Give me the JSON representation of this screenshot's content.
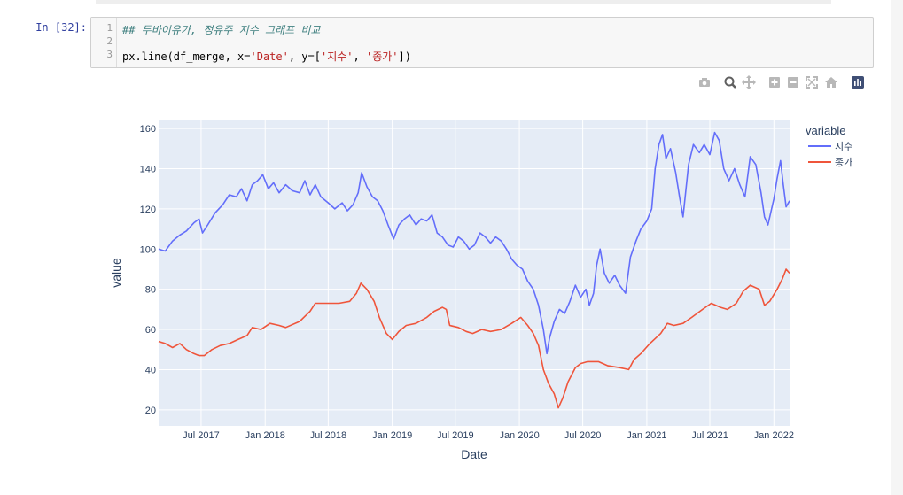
{
  "cell": {
    "prompt": "In [32]:",
    "line_numbers": [
      "1",
      "2",
      "3"
    ],
    "line1_comment": "## 두바이유가, 정유주 지수 그래프 비교",
    "line3_a": "px.line(df_merge, x=",
    "line3_b": "'Date'",
    "line3_c": ", y=[",
    "line3_d": "'지수'",
    "line3_e": ", ",
    "line3_f": "'종가'",
    "line3_g": "])"
  },
  "modebar": {
    "icons": [
      "camera-icon",
      "zoom-icon",
      "pan-icon",
      "zoom-in-icon",
      "zoom-out-icon",
      "autoscale-icon",
      "home-icon",
      "plotly-logo-icon"
    ]
  },
  "chart_data": {
    "type": "line",
    "xlabel": "Date",
    "ylabel": "value",
    "legend_title": "variable",
    "legend_position": "top-right",
    "grid": true,
    "plot_bgcolor": "#E5ECF6",
    "ylim": [
      12,
      164
    ],
    "xlim": [
      "2017-03-01",
      "2022-02-15"
    ],
    "x_ticks": [
      {
        "date": "2017-07-01",
        "label": "Jul 2017"
      },
      {
        "date": "2018-01-01",
        "label": "Jan 2018"
      },
      {
        "date": "2018-07-01",
        "label": "Jul 2018"
      },
      {
        "date": "2019-01-01",
        "label": "Jan 2019"
      },
      {
        "date": "2019-07-01",
        "label": "Jul 2019"
      },
      {
        "date": "2020-01-01",
        "label": "Jan 2020"
      },
      {
        "date": "2020-07-01",
        "label": "Jul 2020"
      },
      {
        "date": "2021-01-01",
        "label": "Jan 2021"
      },
      {
        "date": "2021-07-01",
        "label": "Jul 2021"
      },
      {
        "date": "2022-01-01",
        "label": "Jan 2022"
      }
    ],
    "y_ticks": [
      20,
      40,
      60,
      80,
      100,
      120,
      140,
      160
    ],
    "series": [
      {
        "name": "지수",
        "color": "#636EFA",
        "points": [
          [
            "2017-03-01",
            100
          ],
          [
            "2017-03-20",
            99
          ],
          [
            "2017-04-10",
            104
          ],
          [
            "2017-05-01",
            107
          ],
          [
            "2017-05-20",
            109
          ],
          [
            "2017-06-10",
            113
          ],
          [
            "2017-06-25",
            115
          ],
          [
            "2017-07-05",
            108
          ],
          [
            "2017-07-20",
            112
          ],
          [
            "2017-08-10",
            118
          ],
          [
            "2017-09-01",
            122
          ],
          [
            "2017-09-20",
            127
          ],
          [
            "2017-10-10",
            126
          ],
          [
            "2017-10-25",
            130
          ],
          [
            "2017-11-10",
            124
          ],
          [
            "2017-11-25",
            132
          ],
          [
            "2017-12-10",
            134
          ],
          [
            "2017-12-25",
            137
          ],
          [
            "2018-01-10",
            130
          ],
          [
            "2018-01-25",
            133
          ],
          [
            "2018-02-10",
            128
          ],
          [
            "2018-03-01",
            132
          ],
          [
            "2018-03-20",
            129
          ],
          [
            "2018-04-10",
            128
          ],
          [
            "2018-04-25",
            134
          ],
          [
            "2018-05-10",
            127
          ],
          [
            "2018-05-25",
            132
          ],
          [
            "2018-06-10",
            126
          ],
          [
            "2018-07-01",
            123
          ],
          [
            "2018-07-20",
            120
          ],
          [
            "2018-08-10",
            123
          ],
          [
            "2018-08-25",
            119
          ],
          [
            "2018-09-10",
            122
          ],
          [
            "2018-09-25",
            128
          ],
          [
            "2018-10-05",
            138
          ],
          [
            "2018-10-20",
            131
          ],
          [
            "2018-11-05",
            126
          ],
          [
            "2018-11-20",
            124
          ],
          [
            "2018-12-05",
            119
          ],
          [
            "2018-12-20",
            112
          ],
          [
            "2019-01-05",
            105
          ],
          [
            "2019-01-20",
            112
          ],
          [
            "2019-02-05",
            115
          ],
          [
            "2019-02-20",
            117
          ],
          [
            "2019-03-10",
            112
          ],
          [
            "2019-03-25",
            115
          ],
          [
            "2019-04-10",
            114
          ],
          [
            "2019-04-25",
            117
          ],
          [
            "2019-05-10",
            108
          ],
          [
            "2019-05-25",
            106
          ],
          [
            "2019-06-10",
            102
          ],
          [
            "2019-06-25",
            101
          ],
          [
            "2019-07-10",
            106
          ],
          [
            "2019-07-25",
            104
          ],
          [
            "2019-08-10",
            100
          ],
          [
            "2019-08-25",
            102
          ],
          [
            "2019-09-10",
            108
          ],
          [
            "2019-09-25",
            106
          ],
          [
            "2019-10-10",
            103
          ],
          [
            "2019-10-25",
            106
          ],
          [
            "2019-11-10",
            104
          ],
          [
            "2019-11-25",
            100
          ],
          [
            "2019-12-10",
            95
          ],
          [
            "2019-12-25",
            92
          ],
          [
            "2020-01-10",
            90
          ],
          [
            "2020-01-25",
            84
          ],
          [
            "2020-02-10",
            80
          ],
          [
            "2020-02-25",
            72
          ],
          [
            "2020-03-10",
            60
          ],
          [
            "2020-03-20",
            48
          ],
          [
            "2020-03-28",
            56
          ],
          [
            "2020-04-10",
            64
          ],
          [
            "2020-04-25",
            70
          ],
          [
            "2020-05-10",
            68
          ],
          [
            "2020-05-25",
            74
          ],
          [
            "2020-06-10",
            82
          ],
          [
            "2020-06-25",
            76
          ],
          [
            "2020-07-10",
            80
          ],
          [
            "2020-07-20",
            72
          ],
          [
            "2020-08-01",
            78
          ],
          [
            "2020-08-10",
            92
          ],
          [
            "2020-08-20",
            100
          ],
          [
            "2020-09-01",
            88
          ],
          [
            "2020-09-15",
            83
          ],
          [
            "2020-10-01",
            87
          ],
          [
            "2020-10-15",
            82
          ],
          [
            "2020-11-01",
            78
          ],
          [
            "2020-11-15",
            96
          ],
          [
            "2020-12-01",
            104
          ],
          [
            "2020-12-15",
            110
          ],
          [
            "2021-01-01",
            114
          ],
          [
            "2021-01-15",
            120
          ],
          [
            "2021-01-25",
            140
          ],
          [
            "2021-02-05",
            152
          ],
          [
            "2021-02-15",
            157
          ],
          [
            "2021-02-25",
            145
          ],
          [
            "2021-03-10",
            150
          ],
          [
            "2021-03-25",
            138
          ],
          [
            "2021-04-05",
            126
          ],
          [
            "2021-04-15",
            116
          ],
          [
            "2021-05-01",
            142
          ],
          [
            "2021-05-15",
            152
          ],
          [
            "2021-06-01",
            148
          ],
          [
            "2021-06-15",
            152
          ],
          [
            "2021-07-01",
            147
          ],
          [
            "2021-07-15",
            158
          ],
          [
            "2021-07-28",
            154
          ],
          [
            "2021-08-10",
            140
          ],
          [
            "2021-08-25",
            134
          ],
          [
            "2021-09-10",
            140
          ],
          [
            "2021-09-25",
            132
          ],
          [
            "2021-10-10",
            126
          ],
          [
            "2021-10-25",
            146
          ],
          [
            "2021-11-10",
            142
          ],
          [
            "2021-11-25",
            128
          ],
          [
            "2021-12-05",
            116
          ],
          [
            "2021-12-15",
            112
          ],
          [
            "2022-01-01",
            125
          ],
          [
            "2022-01-10",
            135
          ],
          [
            "2022-01-20",
            144
          ],
          [
            "2022-01-28",
            132
          ],
          [
            "2022-02-05",
            121
          ],
          [
            "2022-02-15",
            124
          ]
        ]
      },
      {
        "name": "종가",
        "color": "#EF553B",
        "points": [
          [
            "2017-03-01",
            54
          ],
          [
            "2017-03-20",
            53
          ],
          [
            "2017-04-10",
            51
          ],
          [
            "2017-05-01",
            53
          ],
          [
            "2017-05-20",
            50
          ],
          [
            "2017-06-10",
            48
          ],
          [
            "2017-06-25",
            47
          ],
          [
            "2017-07-10",
            47
          ],
          [
            "2017-08-01",
            50
          ],
          [
            "2017-08-25",
            52
          ],
          [
            "2017-09-20",
            53
          ],
          [
            "2017-10-15",
            55
          ],
          [
            "2017-11-10",
            57
          ],
          [
            "2017-11-25",
            61
          ],
          [
            "2017-12-20",
            60
          ],
          [
            "2018-01-15",
            63
          ],
          [
            "2018-02-10",
            62
          ],
          [
            "2018-03-01",
            61
          ],
          [
            "2018-04-10",
            64
          ],
          [
            "2018-05-10",
            69
          ],
          [
            "2018-05-25",
            73
          ],
          [
            "2018-06-10",
            73
          ],
          [
            "2018-07-01",
            73
          ],
          [
            "2018-08-01",
            73
          ],
          [
            "2018-09-01",
            74
          ],
          [
            "2018-09-20",
            78
          ],
          [
            "2018-10-03",
            83
          ],
          [
            "2018-10-20",
            80
          ],
          [
            "2018-11-10",
            74
          ],
          [
            "2018-11-25",
            66
          ],
          [
            "2018-12-15",
            58
          ],
          [
            "2019-01-01",
            55
          ],
          [
            "2019-01-20",
            59
          ],
          [
            "2019-02-10",
            62
          ],
          [
            "2019-03-10",
            63
          ],
          [
            "2019-04-10",
            66
          ],
          [
            "2019-05-01",
            69
          ],
          [
            "2019-05-25",
            71
          ],
          [
            "2019-06-05",
            70
          ],
          [
            "2019-06-15",
            62
          ],
          [
            "2019-07-10",
            61
          ],
          [
            "2019-08-01",
            59
          ],
          [
            "2019-08-20",
            58
          ],
          [
            "2019-09-15",
            60
          ],
          [
            "2019-10-10",
            59
          ],
          [
            "2019-11-10",
            60
          ],
          [
            "2019-12-10",
            63
          ],
          [
            "2020-01-05",
            66
          ],
          [
            "2020-01-25",
            62
          ],
          [
            "2020-02-10",
            58
          ],
          [
            "2020-02-25",
            52
          ],
          [
            "2020-03-10",
            40
          ],
          [
            "2020-03-25",
            33
          ],
          [
            "2020-04-10",
            28
          ],
          [
            "2020-04-22",
            21
          ],
          [
            "2020-05-05",
            26
          ],
          [
            "2020-05-20",
            34
          ],
          [
            "2020-06-10",
            41
          ],
          [
            "2020-06-25",
            43
          ],
          [
            "2020-07-15",
            44
          ],
          [
            "2020-08-15",
            44
          ],
          [
            "2020-09-10",
            42
          ],
          [
            "2020-10-15",
            41
          ],
          [
            "2020-11-10",
            40
          ],
          [
            "2020-11-25",
            45
          ],
          [
            "2020-12-15",
            48
          ],
          [
            "2021-01-10",
            53
          ],
          [
            "2021-02-10",
            58
          ],
          [
            "2021-03-01",
            63
          ],
          [
            "2021-03-20",
            62
          ],
          [
            "2021-04-15",
            63
          ],
          [
            "2021-05-10",
            66
          ],
          [
            "2021-06-10",
            70
          ],
          [
            "2021-07-05",
            73
          ],
          [
            "2021-08-01",
            71
          ],
          [
            "2021-08-20",
            70
          ],
          [
            "2021-09-15",
            73
          ],
          [
            "2021-10-05",
            79
          ],
          [
            "2021-10-25",
            82
          ],
          [
            "2021-11-20",
            80
          ],
          [
            "2021-12-05",
            72
          ],
          [
            "2021-12-20",
            74
          ],
          [
            "2022-01-10",
            80
          ],
          [
            "2022-01-25",
            85
          ],
          [
            "2022-02-05",
            90
          ],
          [
            "2022-02-15",
            88
          ]
        ]
      }
    ]
  }
}
